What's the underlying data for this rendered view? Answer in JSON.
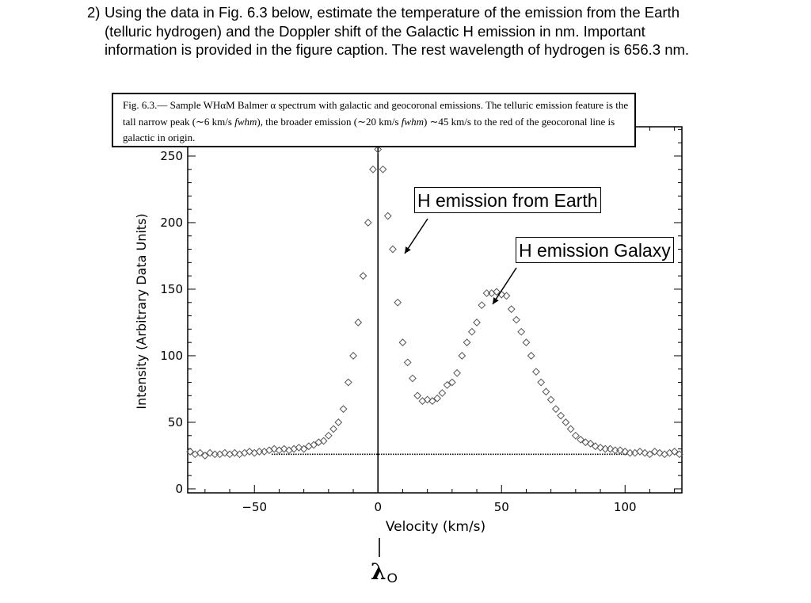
{
  "question": {
    "number": "2)",
    "text": "Using the data in Fig. 6.3 below, estimate the temperature of the emission from the Earth (telluric hydrogen) and the Doppler shift of the Galactic H emission in nm. Important information is provided in the figure caption. The rest wavelength of hydrogen is 656.3 nm."
  },
  "caption": {
    "label": "Fig. 6.3.—",
    "p1": " Sample WHαM Balmer α spectrum with galactic and geocoronal emissions. The telluric emission feature is the tall narrow peak (∼6 km/s ",
    "fwhm1": "fwhm",
    "p2": "), the broader emission (∼20 km/s ",
    "fwhm2": "fwhm",
    "p3": ") ∼45 km/s to the red of the geocoronal line is galactic in origin."
  },
  "annotations": {
    "earth": "H emission from Earth",
    "galaxy": "H emission Galaxy",
    "lambda": "λ",
    "lambda_sub": "O"
  },
  "chart_data": {
    "type": "scatter",
    "title": "",
    "xlabel": "Velocity (km/s)",
    "ylabel": "Intensity (Arbitrary Data Units)",
    "xlim": [
      -77,
      123
    ],
    "ylim": [
      -3,
      272
    ],
    "xticks": [
      -50,
      0,
      50,
      100
    ],
    "yticks": [
      0,
      50,
      100,
      150,
      200,
      250
    ],
    "marker": "open-diamond",
    "vertical_line_x": 0,
    "baseline": {
      "y": 26,
      "x_start": -43,
      "x_end": 101,
      "style": "dotted"
    },
    "points": [
      [
        -76,
        28
      ],
      [
        -74,
        26
      ],
      [
        -72,
        27
      ],
      [
        -70,
        25
      ],
      [
        -68,
        27
      ],
      [
        -66,
        26
      ],
      [
        -64,
        26
      ],
      [
        -62,
        27
      ],
      [
        -60,
        26
      ],
      [
        -58,
        27
      ],
      [
        -56,
        26
      ],
      [
        -54,
        27
      ],
      [
        -52,
        28
      ],
      [
        -50,
        27
      ],
      [
        -48,
        28
      ],
      [
        -46,
        28
      ],
      [
        -44,
        29
      ],
      [
        -42,
        30
      ],
      [
        -40,
        29
      ],
      [
        -38,
        30
      ],
      [
        -36,
        29
      ],
      [
        -34,
        30
      ],
      [
        -32,
        31
      ],
      [
        -30,
        30
      ],
      [
        -28,
        32
      ],
      [
        -26,
        33
      ],
      [
        -24,
        35
      ],
      [
        -22,
        36
      ],
      [
        -20,
        40
      ],
      [
        -18,
        45
      ],
      [
        -16,
        50
      ],
      [
        -14,
        60
      ],
      [
        -12,
        80
      ],
      [
        -10,
        100
      ],
      [
        -8,
        125
      ],
      [
        -6,
        160
      ],
      [
        -4,
        200
      ],
      [
        -2,
        240
      ],
      [
        0,
        255
      ],
      [
        2,
        240
      ],
      [
        4,
        205
      ],
      [
        6,
        180
      ],
      [
        8,
        140
      ],
      [
        10,
        110
      ],
      [
        12,
        95
      ],
      [
        14,
        83
      ],
      [
        16,
        70
      ],
      [
        18,
        66
      ],
      [
        20,
        67
      ],
      [
        22,
        66
      ],
      [
        24,
        68
      ],
      [
        26,
        72
      ],
      [
        28,
        78
      ],
      [
        30,
        80
      ],
      [
        32,
        87
      ],
      [
        34,
        100
      ],
      [
        36,
        110
      ],
      [
        38,
        118
      ],
      [
        40,
        125
      ],
      [
        42,
        138
      ],
      [
        44,
        147
      ],
      [
        46,
        147
      ],
      [
        48,
        148
      ],
      [
        50,
        146
      ],
      [
        52,
        145
      ],
      [
        54,
        135
      ],
      [
        56,
        127
      ],
      [
        58,
        118
      ],
      [
        60,
        110
      ],
      [
        62,
        100
      ],
      [
        64,
        88
      ],
      [
        66,
        80
      ],
      [
        68,
        73
      ],
      [
        70,
        67
      ],
      [
        72,
        60
      ],
      [
        74,
        55
      ],
      [
        76,
        50
      ],
      [
        78,
        45
      ],
      [
        80,
        40
      ],
      [
        82,
        37
      ],
      [
        84,
        35
      ],
      [
        86,
        34
      ],
      [
        88,
        32
      ],
      [
        90,
        31
      ],
      [
        92,
        30
      ],
      [
        94,
        30
      ],
      [
        96,
        29
      ],
      [
        98,
        29
      ],
      [
        100,
        28
      ],
      [
        102,
        27
      ],
      [
        104,
        27
      ],
      [
        106,
        28
      ],
      [
        108,
        27
      ],
      [
        110,
        26
      ],
      [
        112,
        28
      ],
      [
        114,
        27
      ],
      [
        116,
        26
      ],
      [
        118,
        27
      ],
      [
        120,
        28
      ],
      [
        122,
        26
      ]
    ]
  }
}
